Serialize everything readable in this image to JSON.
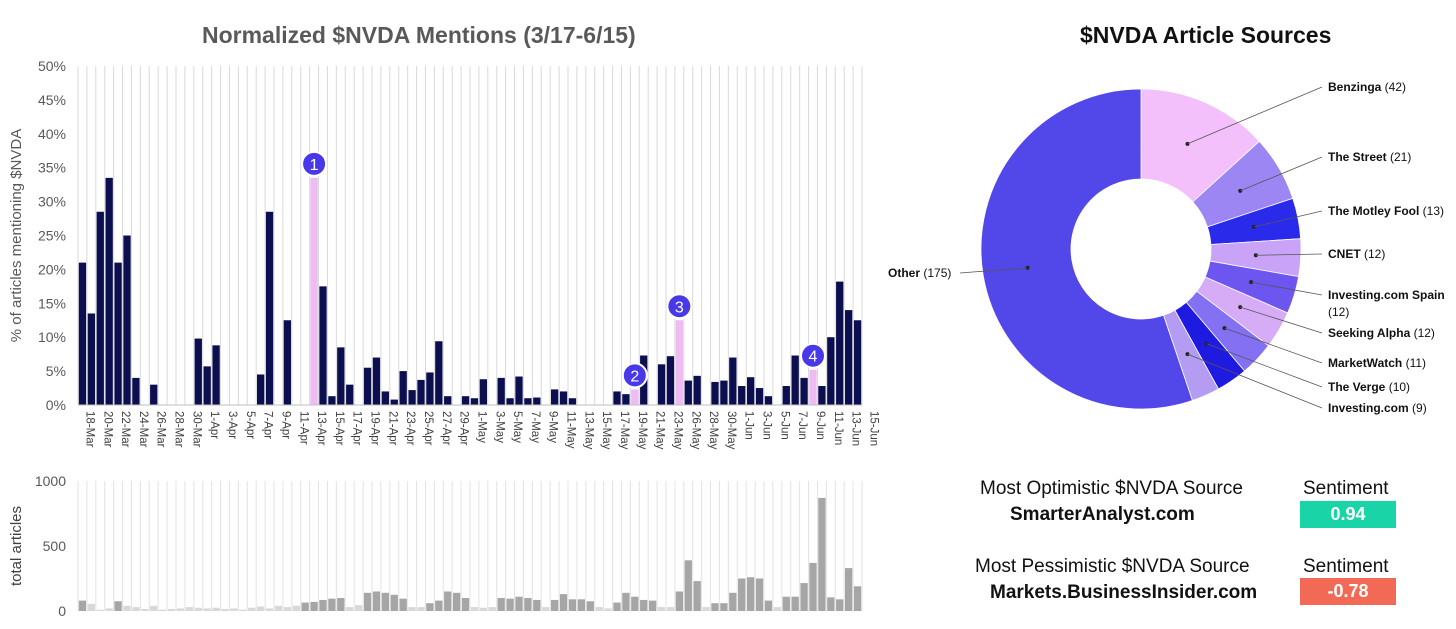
{
  "chart_data": [
    {
      "type": "bar",
      "title": "Normalized $NVDA Mentions (3/17-6/15)",
      "ylabel": "% of articles mentioning $NVDA",
      "ylim": [
        0,
        50
      ],
      "yticks": [
        "0%",
        "5%",
        "10%",
        "15%",
        "20%",
        "25%",
        "30%",
        "35%",
        "40%",
        "45%",
        "50%"
      ],
      "xtick_labels": [
        "18-Mar",
        "20-Mar",
        "22-Mar",
        "24-Mar",
        "26-Mar",
        "28-Mar",
        "30-Mar",
        "1-Apr",
        "3-Apr",
        "5-Apr",
        "7-Apr",
        "9-Apr",
        "11-Apr",
        "13-Apr",
        "15-Apr",
        "17-Apr",
        "19-Apr",
        "21-Apr",
        "23-Apr",
        "25-Apr",
        "27-Apr",
        "29-Apr",
        "1-May",
        "3-May",
        "5-May",
        "7-May",
        "9-May",
        "11-May",
        "13-May",
        "15-May",
        "17-May",
        "19-May",
        "21-May",
        "23-May",
        "26-May",
        "28-May",
        "30-May",
        "1-Jun",
        "3-Jun",
        "5-Jun",
        "7-Jun",
        "9-Jun",
        "11-Jun",
        "13-Jun",
        "15-Jun"
      ],
      "values": [
        21,
        13.5,
        28.5,
        33.5,
        21,
        25,
        4,
        0,
        3,
        0,
        0,
        0,
        0,
        9.8,
        5.7,
        8.8,
        0,
        0,
        0,
        0,
        4.5,
        28.5,
        0,
        12.5,
        0,
        0,
        33.5,
        17.5,
        1.3,
        8.5,
        3,
        0,
        5.5,
        7,
        2,
        0.8,
        5,
        2.2,
        3.7,
        4.8,
        9.4,
        1.3,
        0,
        1.3,
        1,
        3.8,
        0,
        4,
        1,
        4.2,
        1,
        1.1,
        0,
        2.3,
        2,
        1,
        0,
        0,
        0,
        0,
        2,
        1.6,
        2.3,
        7.3,
        0,
        6,
        7.2,
        12.5,
        3.6,
        4.3,
        0,
        3.4,
        3.6,
        7,
        2.8,
        4.1,
        2.5,
        1.3,
        0,
        2.8,
        7.3,
        4,
        5.2,
        2.8,
        10,
        18.2,
        14,
        12.5
      ],
      "highlights": [
        {
          "index": 26,
          "label": "1"
        },
        {
          "index": 62,
          "label": "2"
        },
        {
          "index": 67,
          "label": "3"
        },
        {
          "index": 82,
          "label": "4"
        }
      ],
      "colors": {
        "bar": "#0c0f4f",
        "highlight": "#eebbf2",
        "marker": "#4938e8"
      }
    },
    {
      "type": "bar",
      "ylabel": "total articles",
      "ylim": [
        0,
        1000
      ],
      "yticks": [
        "0",
        "500",
        "1000"
      ],
      "values": [
        80,
        55,
        10,
        20,
        75,
        40,
        30,
        15,
        40,
        10,
        15,
        20,
        30,
        25,
        20,
        25,
        15,
        20,
        10,
        25,
        35,
        20,
        40,
        30,
        40,
        65,
        70,
        85,
        95,
        100,
        30,
        45,
        140,
        150,
        140,
        125,
        95,
        30,
        30,
        60,
        80,
        150,
        140,
        100,
        30,
        25,
        30,
        100,
        95,
        110,
        100,
        85,
        30,
        85,
        130,
        90,
        90,
        75,
        30,
        20,
        65,
        140,
        110,
        85,
        80,
        30,
        30,
        150,
        390,
        230,
        30,
        60,
        60,
        140,
        250,
        260,
        250,
        80,
        30,
        110,
        110,
        215,
        370,
        870,
        105,
        90,
        330,
        190
      ],
      "colors": {
        "bar": "#a6a6a6",
        "light": "#d8d8d8"
      }
    },
    {
      "type": "pie",
      "title": "$NVDA Article Sources",
      "labels": [
        "Benzinga (42)",
        "The Street (21)",
        "The Motley Fool (13)",
        "CNET (12)",
        "Investing.com Spain (12)",
        "Seeking Alpha (12)",
        "MarketWatch (11)",
        "The Verge (10)",
        "Investing.com (9)",
        "Other (175)"
      ],
      "values": [
        42,
        21,
        13,
        12,
        12,
        12,
        11,
        10,
        9,
        175
      ],
      "colors": [
        "#f3c0fb",
        "#9b86f4",
        "#2a2aeb",
        "#c9a3f7",
        "#6d55ef",
        "#d7acf6",
        "#8370f3",
        "#1f1ae0",
        "#b39cf2",
        "#5248ea"
      ]
    }
  ],
  "sentiment": {
    "optimistic": {
      "heading": "Most Optimistic $NVDA Source",
      "source": "SmarterAnalyst.com",
      "header": "Sentiment",
      "score": "0.94",
      "color": "#18d4a6"
    },
    "pessimistic": {
      "heading": "Most Pessimistic $NVDA Source",
      "source": "Markets.BusinessInsider.com",
      "header": "Sentiment",
      "score": "-0.78",
      "color": "#f26a55"
    }
  }
}
